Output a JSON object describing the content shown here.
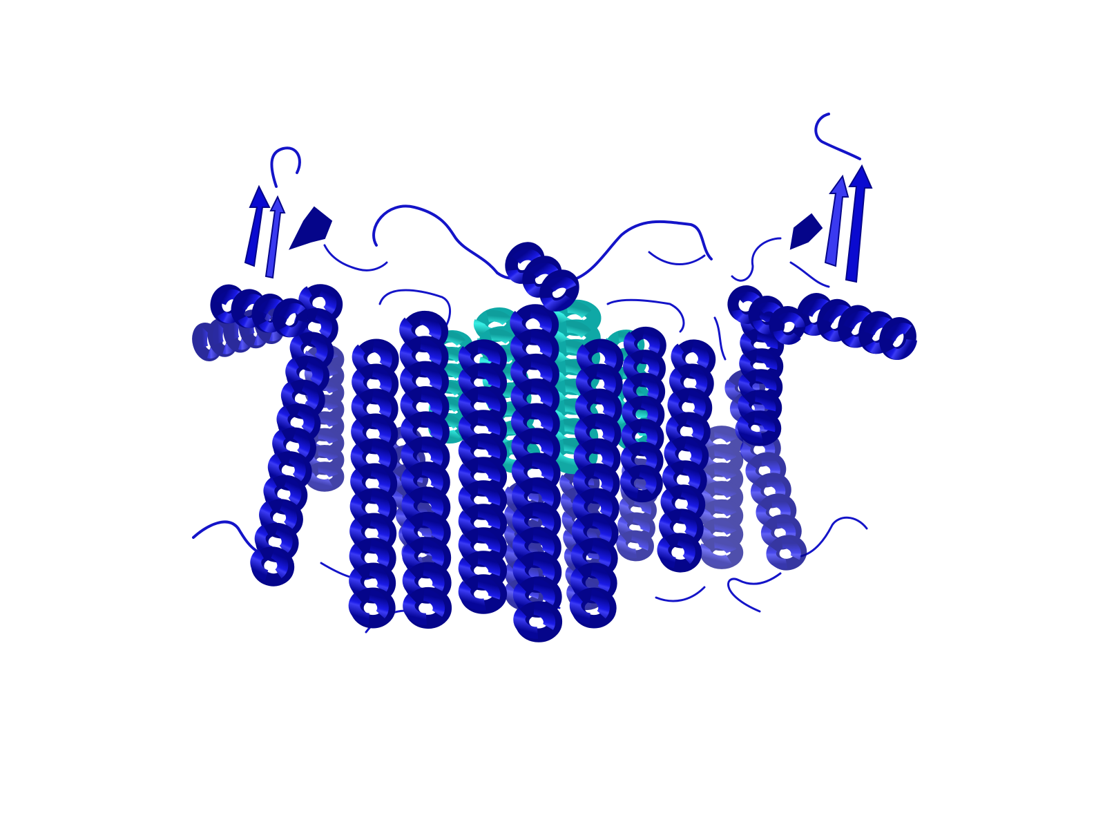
{
  "scene": {
    "subject": "protein-ribbon-cartoon",
    "background_color": "#ffffff",
    "colors": {
      "primary_chain": "#0a0ad0",
      "primary_shadow": "#05058a",
      "primary_highlight": "#3a3af0",
      "secondary_chain": "#22e0d8",
      "secondary_shadow": "#0fa8a6",
      "loop_color": "#1414c8"
    }
  }
}
